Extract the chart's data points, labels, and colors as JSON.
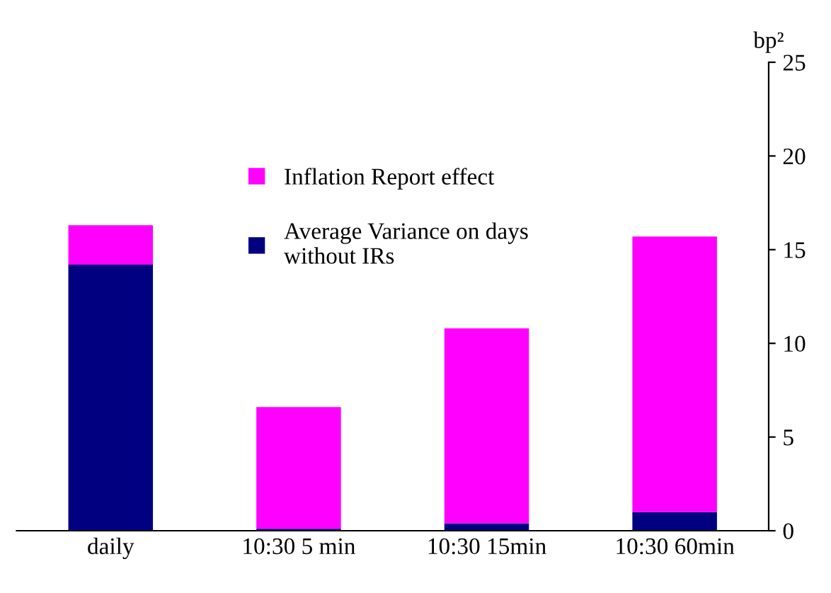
{
  "chart_data": {
    "type": "bar",
    "stacked": true,
    "ylabel": "bp²",
    "categories": [
      "daily",
      "10:30 5 min",
      "10:30 15min",
      "10:30 60min"
    ],
    "series": [
      {
        "name": "Average Variance on days\nwithout IRs",
        "color": "#000080",
        "values": [
          14.2,
          0.1,
          0.4,
          1.0
        ]
      },
      {
        "name": "Inflation Report effect",
        "color": "#ff00ff",
        "values": [
          2.1,
          6.5,
          10.4,
          14.7
        ]
      }
    ],
    "ylim": [
      0,
      25
    ],
    "yticks": [
      0,
      5,
      10,
      15,
      20,
      25
    ],
    "grid": false,
    "legend": "top left"
  }
}
